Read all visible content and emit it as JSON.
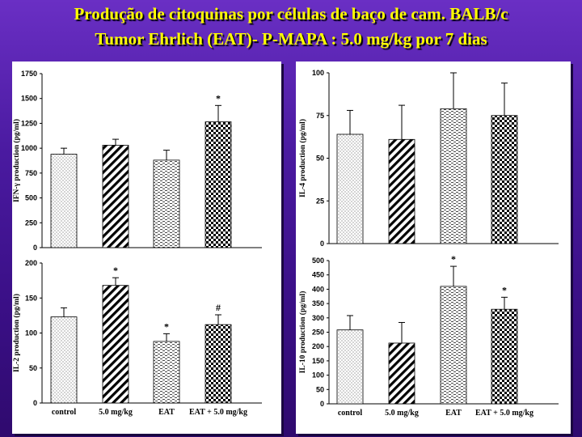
{
  "title": {
    "line1": "Produção de citoquinas por células de baço de cam. BALB/c",
    "line2": "Tumor Ehrlich (EAT)- P-MAPA : 5.0 mg/kg  por 7 dias"
  },
  "colors": {
    "background": "#4a1aa0",
    "title": "#ffff00",
    "panel": "#ffffff"
  },
  "categories": [
    "control",
    "5.0 mg/kg",
    "EAT",
    "EAT + 5.0 mg/kg"
  ],
  "patterns": [
    "dots",
    "diagonal",
    "dashes",
    "checker"
  ],
  "chart_data": [
    {
      "type": "bar",
      "ylabel": "IFN-γ production (pg/ml)",
      "ylim": [
        0,
        1750
      ],
      "yticks": [
        0,
        250,
        500,
        750,
        1000,
        1250,
        1500,
        1750
      ],
      "categories": [
        "control",
        "5.0 mg/kg",
        "EAT",
        "EAT + 5.0 mg/kg"
      ],
      "values": [
        940,
        1030,
        880,
        1265
      ],
      "errors": [
        60,
        60,
        100,
        165
      ],
      "annotations": [
        "",
        "",
        "",
        "*"
      ],
      "show_category_labels": false
    },
    {
      "type": "bar",
      "ylabel": "IL-2 production (pg/ml)",
      "ylim": [
        0,
        200
      ],
      "yticks": [
        0,
        50,
        100,
        150,
        200
      ],
      "categories": [
        "control",
        "5.0 mg/kg",
        "EAT",
        "EAT + 5.0 mg/kg"
      ],
      "values": [
        123,
        168,
        88,
        112
      ],
      "errors": [
        13,
        11,
        11,
        14
      ],
      "annotations": [
        "",
        "*",
        "*",
        "#"
      ],
      "show_category_labels": true
    },
    {
      "type": "bar",
      "ylabel": "IL-4 production (pg/ml)",
      "ylim": [
        0,
        100
      ],
      "yticks": [
        0,
        25,
        50,
        75,
        100
      ],
      "categories": [
        "control",
        "5.0 mg/kg",
        "EAT",
        "EAT + 5.0 mg/kg"
      ],
      "values": [
        64,
        61,
        79,
        75
      ],
      "errors": [
        14,
        20,
        21,
        19
      ],
      "annotations": [
        "",
        "",
        "",
        ""
      ],
      "show_category_labels": false
    },
    {
      "type": "bar",
      "ylabel": "IL-10 production (pg/ml)",
      "ylim": [
        0,
        500
      ],
      "yticks": [
        0,
        50,
        100,
        150,
        200,
        250,
        300,
        350,
        400,
        450,
        500
      ],
      "categories": [
        "control",
        "5.0 mg/kg",
        "EAT",
        "EAT + 5.0 mg/kg"
      ],
      "values": [
        258,
        212,
        410,
        330
      ],
      "errors": [
        50,
        72,
        70,
        42
      ],
      "annotations": [
        "",
        "",
        "*",
        "*"
      ],
      "show_category_labels": true
    }
  ]
}
